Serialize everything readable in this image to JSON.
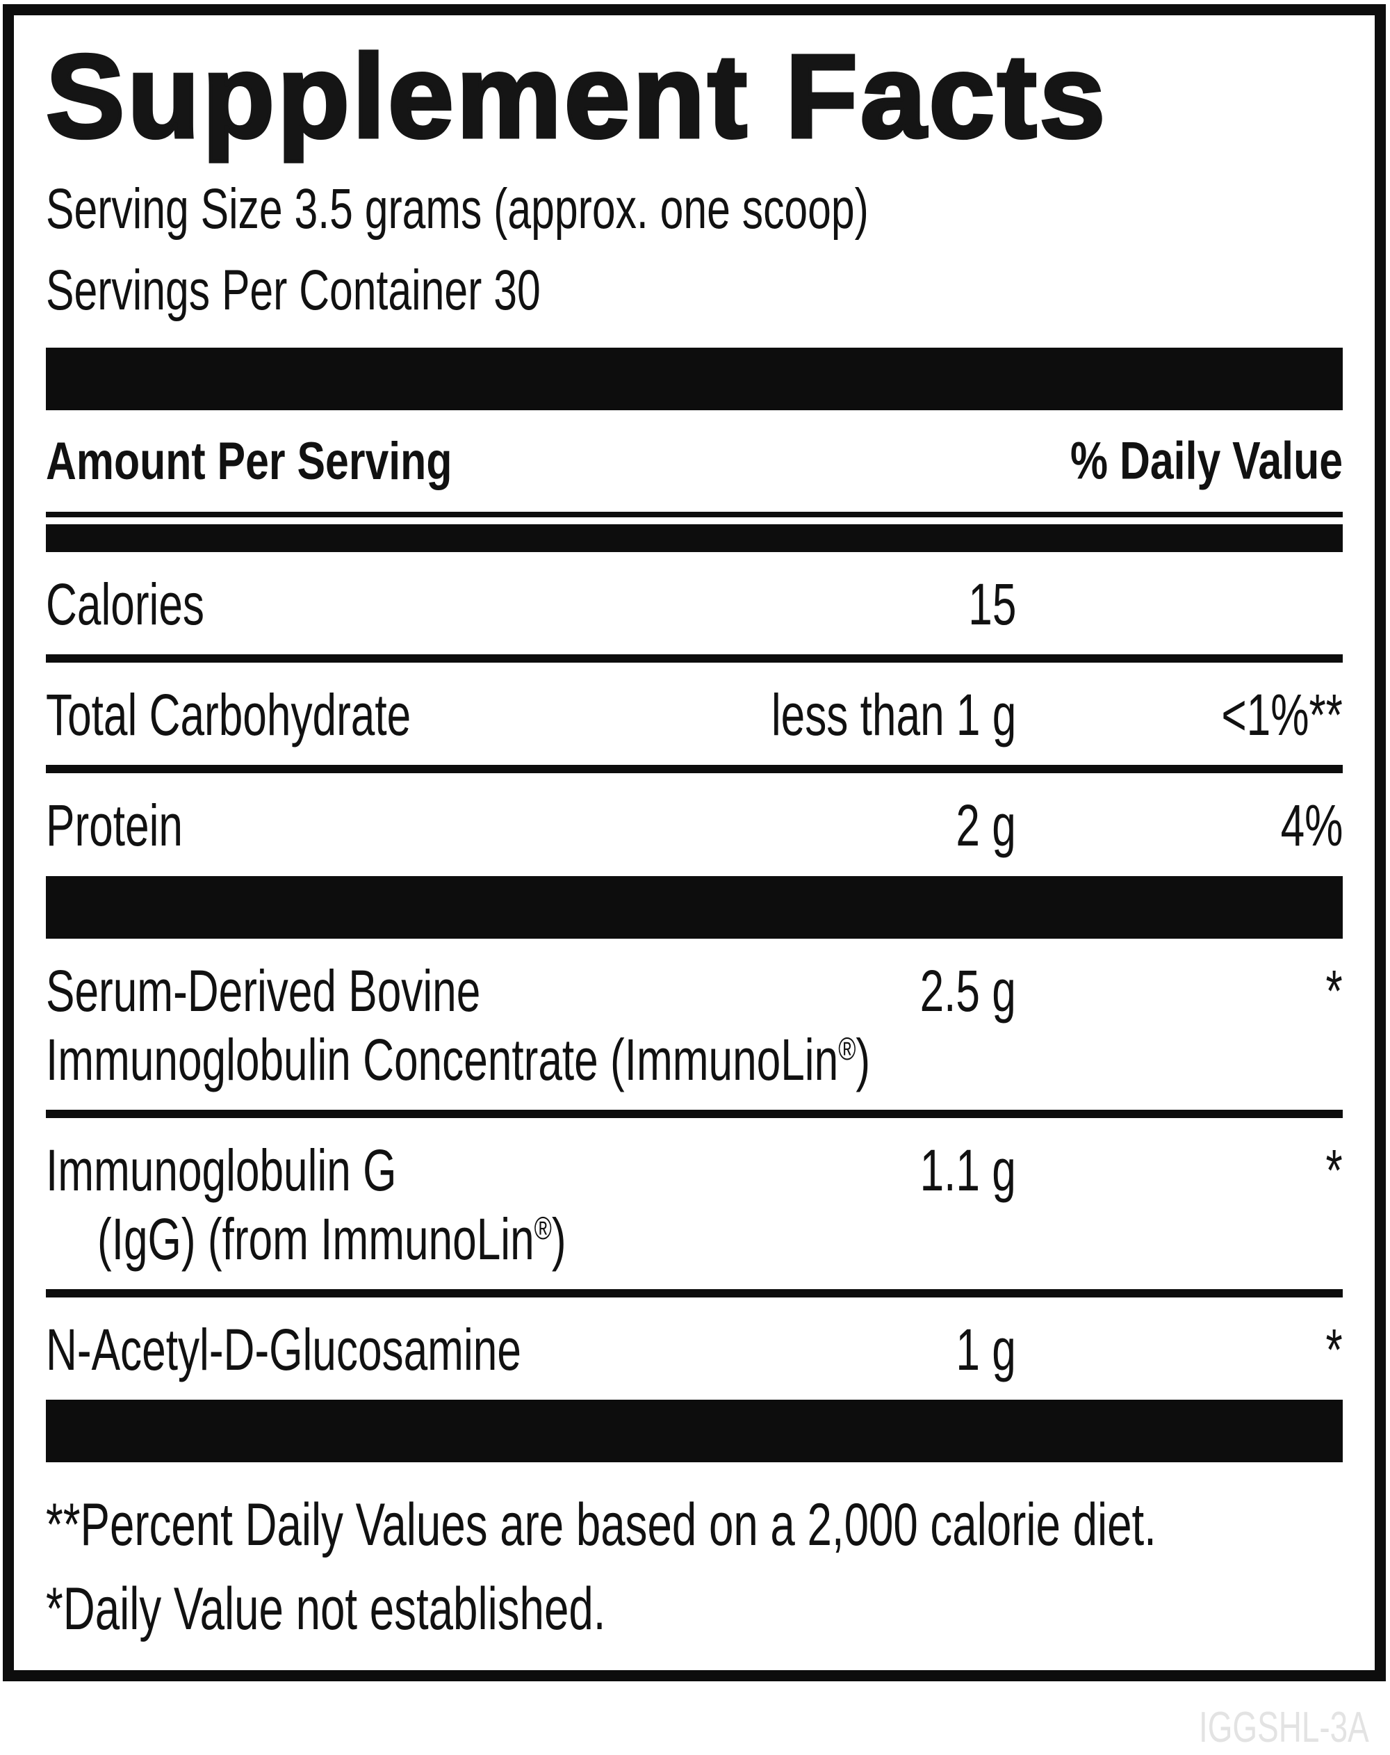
{
  "label": {
    "title": "Supplement Facts",
    "serving_size": "Serving Size 3.5 grams (approx. one scoop)",
    "servings_per_container": "Servings Per Container 30",
    "header": {
      "amount": "Amount Per Serving",
      "dv": "% Daily Value"
    },
    "rows": {
      "calories": {
        "name": "Calories",
        "amount": "15",
        "dv": ""
      },
      "carbs": {
        "name": "Total Carbohydrate",
        "amount": "less than 1 g",
        "dv": "<1%**"
      },
      "protein": {
        "name": "Protein",
        "amount": "2 g",
        "dv": "4%"
      },
      "serum": {
        "line1": "Serum-Derived Bovine",
        "line2_pre": "Immunoglobulin Concentrate (ImmunoLin",
        "reg": "®",
        "line2_post": ")",
        "amount": "2.5 g",
        "dv": "*"
      },
      "igg": {
        "line1": "Immunoglobulin G",
        "line2_pre": "(IgG) (from ImmunoLin",
        "reg": "®",
        "line2_post": ")",
        "amount": "1.1 g",
        "dv": "*"
      },
      "nag": {
        "name": "N-Acetyl-D-Glucosamine",
        "amount": "1 g",
        "dv": "*"
      }
    },
    "footnotes": {
      "percent_dv": "**Percent Daily Values are based on a 2,000 calorie diet.",
      "not_established": "*Daily Value not established."
    },
    "code": "IGGSHL-3A",
    "colors": {
      "ink": "#0d0d0d",
      "code_gray": "#e3e3e3"
    }
  }
}
